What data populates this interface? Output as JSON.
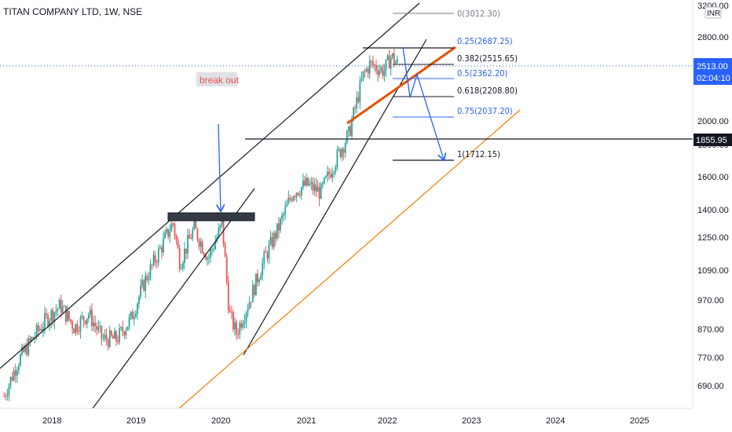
{
  "header": {
    "title": "TITAN COMPANY LTD, 1W, NSE"
  },
  "currency_badge": "INR",
  "price_axis": {
    "ticks": [
      "3200.00",
      "2800.00",
      "2000.00",
      "1600.00",
      "1400.00",
      "1250.00",
      "1090.00",
      "970.00",
      "870.00",
      "770.00",
      "690.00"
    ],
    "ticks_hidden": [
      "1800.00"
    ],
    "current_price_label": "2513.00",
    "countdown_label": "02:04:10",
    "horizontal_line_label": "1855.95"
  },
  "time_axis": {
    "ticks": [
      "2018",
      "2019",
      "2020",
      "2021",
      "2022",
      "2023",
      "2024",
      "2025"
    ]
  },
  "annotations": {
    "break_out_label": "break out"
  },
  "fib_levels": [
    {
      "label": "0(3012.30)",
      "color": "#787b86"
    },
    {
      "label": "0.25(2687.25)",
      "color": "#2962ff"
    },
    {
      "label": "0.382(2515.65)",
      "color": "#131722"
    },
    {
      "label": "0.5(2362.20)",
      "color": "#2962ff"
    },
    {
      "label": "0.618(2208.80)",
      "color": "#131722"
    },
    {
      "label": "0.75(2037.20)",
      "color": "#2962ff"
    },
    {
      "label": "1(1712.15)",
      "color": "#131722"
    }
  ],
  "colors": {
    "up": "#26a69a",
    "down": "#ef5350",
    "accent_blue": "#2962ff",
    "trend_orange": "#f57c00",
    "trend_red": "#e65100",
    "current_price_bg": "#2962ff",
    "line_label_bg": "#131722"
  },
  "chart_data": {
    "type": "candlestick",
    "title": "TITAN COMPANY LTD, 1W, NSE",
    "scale": "log",
    "ylim": [
      640,
      3250
    ],
    "x_range": [
      "2017-07",
      "2025-10"
    ],
    "series": [
      {
        "kind": "close_path",
        "points": [
          [
            "2017-07",
            660
          ],
          [
            "2017-09",
            760
          ],
          [
            "2017-11",
            830
          ],
          [
            "2018-01",
            900
          ],
          [
            "2018-03",
            950
          ],
          [
            "2018-05",
            870
          ],
          [
            "2018-07",
            920
          ],
          [
            "2018-09",
            830
          ],
          [
            "2018-11",
            830
          ],
          [
            "2019-01",
            900
          ],
          [
            "2019-03",
            1050
          ],
          [
            "2019-05",
            1180
          ],
          [
            "2019-07",
            1330
          ],
          [
            "2019-08",
            1130
          ],
          [
            "2019-10",
            1300
          ],
          [
            "2019-12",
            1150
          ],
          [
            "2020-02",
            1320
          ],
          [
            "2020-03",
            920
          ],
          [
            "2020-04",
            850
          ],
          [
            "2020-06",
            980
          ],
          [
            "2020-08",
            1150
          ],
          [
            "2020-10",
            1300
          ],
          [
            "2020-12",
            1500
          ],
          [
            "2021-02",
            1550
          ],
          [
            "2021-04",
            1500
          ],
          [
            "2021-06",
            1700
          ],
          [
            "2021-08",
            1900
          ],
          [
            "2021-10",
            2400
          ],
          [
            "2021-11",
            2520
          ],
          [
            "2022-01",
            2450
          ],
          [
            "2022-02",
            2600
          ],
          [
            "2022-03",
            2513
          ]
        ]
      }
    ],
    "fibonacci_levels": [
      {
        "ratio": 0,
        "price": 3012.3
      },
      {
        "ratio": 0.25,
        "price": 2687.25
      },
      {
        "ratio": 0.382,
        "price": 2515.65
      },
      {
        "ratio": 0.5,
        "price": 2362.2
      },
      {
        "ratio": 0.618,
        "price": 2208.8
      },
      {
        "ratio": 0.75,
        "price": 2037.2
      },
      {
        "ratio": 1,
        "price": 1712.15
      }
    ],
    "horizontal_line": 1855.95,
    "last_price": 2513.0
  }
}
